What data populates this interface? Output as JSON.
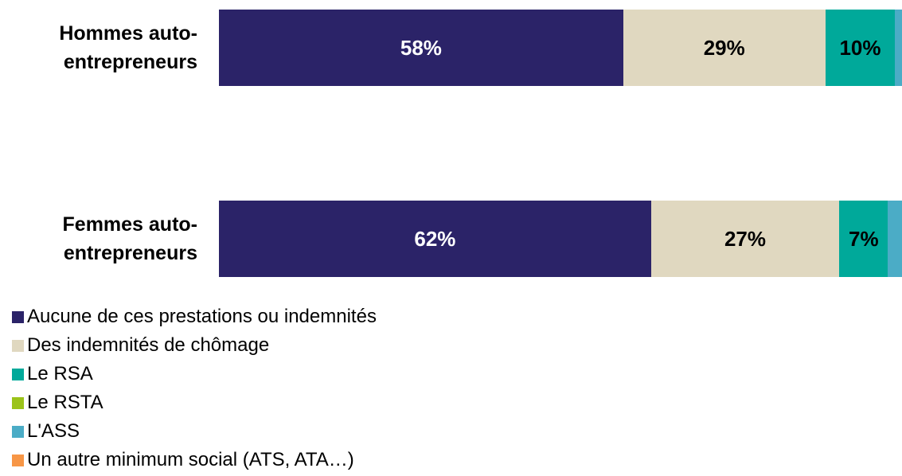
{
  "chart_data": {
    "type": "stacked-bar-horizontal",
    "categories": [
      "Hommes auto-entrepreneurs",
      "Femmes auto-entrepreneurs"
    ],
    "series": [
      {
        "name": "Aucune de ces prestations ou indemnités",
        "color": "#2b2368",
        "values": [
          58,
          62
        ],
        "value_labels": [
          "58%",
          "62%"
        ]
      },
      {
        "name": "Des indemnités de chômage",
        "color": "#e0d8c0",
        "values": [
          29,
          27
        ],
        "value_labels": [
          "29%",
          "27%"
        ]
      },
      {
        "name": "Le RSA",
        "color": "#00a99a",
        "values": [
          10,
          7
        ],
        "value_labels": [
          "10%",
          "7%"
        ]
      },
      {
        "name": "Le RSTA",
        "color": "#9bc31a",
        "values": [
          0,
          0
        ],
        "value_labels": [
          null,
          null
        ]
      },
      {
        "name": "L'ASS",
        "color": "#4bacc6",
        "values": [
          1,
          2
        ],
        "value_labels": [
          null,
          null
        ]
      },
      {
        "name": "Un autre minimum social (ATS, ATA…)",
        "color": "#f79646",
        "values": [
          0,
          0
        ],
        "value_labels": [
          null,
          null
        ]
      }
    ],
    "legend": "bottom-left"
  }
}
